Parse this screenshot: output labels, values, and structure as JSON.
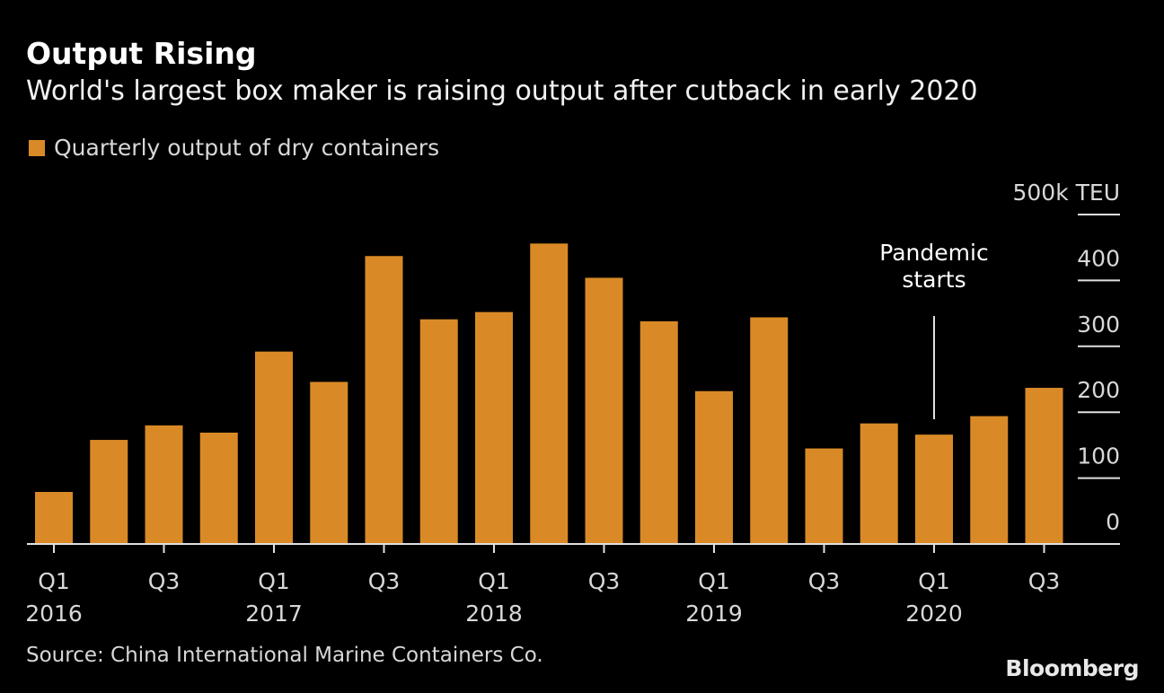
{
  "chart_data": {
    "type": "bar",
    "title": "Output Rising",
    "subtitle": "World's largest box maker is raising output after cutback in early 2020",
    "series": [
      {
        "name": "Quarterly output of dry containers",
        "color": "#d98a26",
        "values": [
          79,
          158,
          180,
          169,
          292,
          246,
          437,
          341,
          352,
          456,
          404,
          338,
          232,
          344,
          145,
          183,
          166,
          194,
          237
        ]
      }
    ],
    "categories": [
      "Q1 2016",
      "Q2 2016",
      "Q3 2016",
      "Q4 2016",
      "Q1 2017",
      "Q2 2017",
      "Q3 2017",
      "Q4 2017",
      "Q1 2018",
      "Q2 2018",
      "Q3 2018",
      "Q4 2018",
      "Q1 2019",
      "Q2 2019",
      "Q3 2019",
      "Q4 2019",
      "Q1 2020",
      "Q2 2020",
      "Q3 2020"
    ],
    "x_tick_labels": [
      {
        "index": 0,
        "q": "Q1",
        "year": "2016"
      },
      {
        "index": 2,
        "q": "Q3",
        "year": ""
      },
      {
        "index": 4,
        "q": "Q1",
        "year": "2017"
      },
      {
        "index": 6,
        "q": "Q3",
        "year": ""
      },
      {
        "index": 8,
        "q": "Q1",
        "year": "2018"
      },
      {
        "index": 10,
        "q": "Q3",
        "year": ""
      },
      {
        "index": 12,
        "q": "Q1",
        "year": "2019"
      },
      {
        "index": 14,
        "q": "Q3",
        "year": ""
      },
      {
        "index": 16,
        "q": "Q1",
        "year": "2020"
      },
      {
        "index": 18,
        "q": "Q3",
        "year": ""
      }
    ],
    "y_ticks": [
      0,
      100,
      200,
      300,
      400,
      500
    ],
    "y_tick_labels": [
      "0",
      "100",
      "200",
      "300",
      "400",
      "500k TEU"
    ],
    "ylim": [
      0,
      500
    ],
    "y_axis_side": "right",
    "grid": false,
    "legend_position": "top-left",
    "annotation": {
      "text_lines": [
        "Pandemic",
        "starts"
      ],
      "index": 16
    },
    "source": "Source: China International Marine Containers Co.",
    "logo": "Bloomberg"
  }
}
